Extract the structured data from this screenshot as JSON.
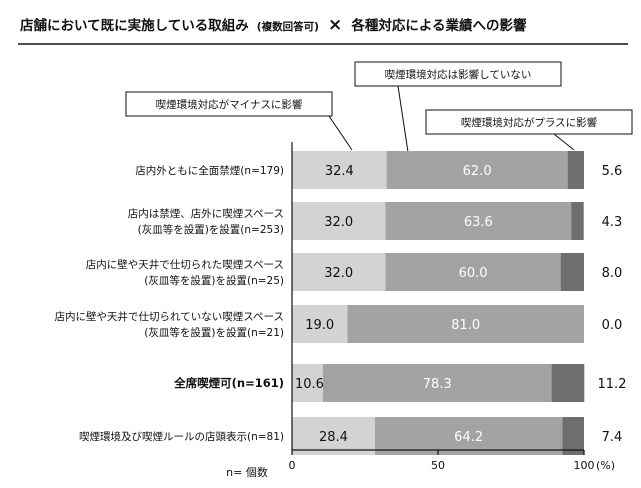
{
  "title": {
    "main_left": "店舗において既に実施している取組み",
    "paren": "(複数回答可)",
    "cross": "×",
    "main_right": "各種対応による業績への影響"
  },
  "legend_callouts": {
    "minus": "喫煙環境対応がマイナスに影響",
    "none": "喫煙環境対応は影響していない",
    "plus": "喫煙環境対応がプラスに影響"
  },
  "note": "n= 個数",
  "axis_unit": "(%)",
  "colors": {
    "minus": "#d3d3d3",
    "none": "#a3a3a3",
    "plus": "#6e6e6e"
  },
  "chart_data": {
    "type": "bar",
    "orientation": "horizontal",
    "stacked": true,
    "categories": [
      [
        "店内外ともに全面禁煙(n=179)"
      ],
      [
        "店内は禁煙、店外に喫煙スペース",
        "(灰皿等を設置)を設置(n=253)"
      ],
      [
        "店内に壁や天井で仕切られた喫煙スペース",
        "(灰皿等を設置)を設置(n=25)"
      ],
      [
        "店内に壁や天井で仕切られていない喫煙スペース",
        "(灰皿等を設置)を設置(n=21)"
      ],
      [
        "全席喫煙可(n=161)"
      ],
      [
        "喫煙環境及び喫煙ルールの店頭表示(n=81)"
      ]
    ],
    "series": [
      {
        "name": "喫煙環境対応がマイナスに影響",
        "values": [
          32.4,
          32.0,
          32.0,
          19.0,
          10.6,
          28.4
        ],
        "labels": [
          "32.4",
          "32.0",
          "32.0",
          "19.0",
          "10.6",
          "28.4"
        ]
      },
      {
        "name": "喫煙環境対応は影響していない",
        "values": [
          62.0,
          63.6,
          60.0,
          81.0,
          78.3,
          64.2
        ],
        "labels": [
          "62.0",
          "63.6",
          "60.0",
          "81.0",
          "78.3",
          "64.2"
        ]
      },
      {
        "name": "喫煙環境対応がプラスに影響",
        "values": [
          5.6,
          4.3,
          8.0,
          0.0,
          11.2,
          7.4
        ],
        "labels": [
          "5.6",
          "4.3",
          "8.0",
          "0.0",
          "11.2",
          "7.4"
        ]
      }
    ],
    "xlim": [
      0,
      100
    ],
    "xticks": [
      "0",
      "50",
      "100"
    ],
    "grid": false
  }
}
